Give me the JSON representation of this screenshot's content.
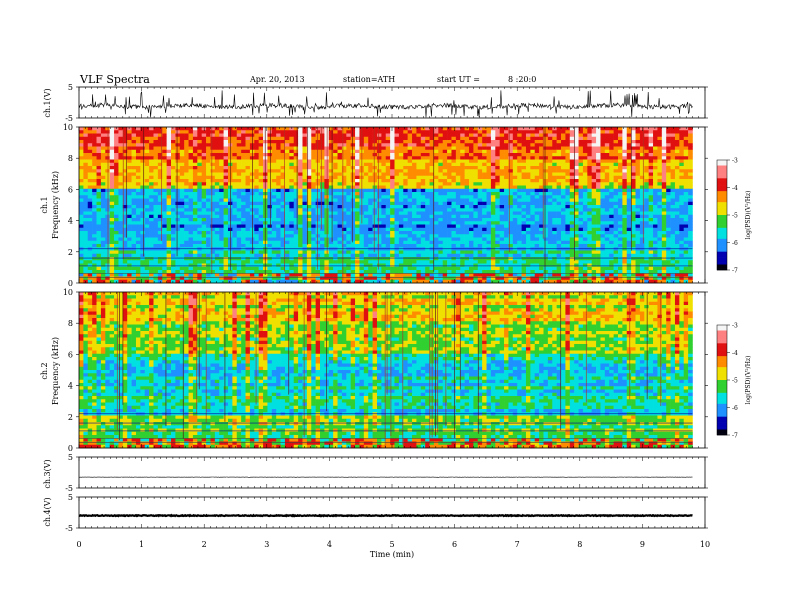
{
  "header": {
    "title": "VLF Spectra",
    "date": "Apr. 20, 2013",
    "station": "station=ATH",
    "start_label": "start UT =",
    "start_time": "8 :20:0"
  },
  "x_axis": {
    "label": "Time (min)",
    "ticks": [
      "0",
      "1",
      "2",
      "3",
      "4",
      "5",
      "6",
      "7",
      "8",
      "9",
      "10"
    ]
  },
  "panels": {
    "ch1_wave": {
      "ylabel": "ch.1(V)",
      "ticks": [
        "5",
        "-5"
      ]
    },
    "ch1_spec": {
      "ylabel": "ch.1",
      "ylabel2": "Frequency (kHz)",
      "ticks": [
        "10",
        "8",
        "6",
        "4",
        "2",
        "0"
      ]
    },
    "ch2_spec": {
      "ylabel": "ch.2",
      "ylabel2": "Frequency (kHz)",
      "ticks": [
        "10",
        "8",
        "6",
        "4",
        "2",
        "0"
      ]
    },
    "ch3_wave": {
      "ylabel": "ch.3(V)",
      "ticks": [
        "5",
        "-5"
      ]
    },
    "ch4_wave": {
      "ylabel": "ch.4(V)",
      "ticks": [
        "5",
        "-5"
      ]
    }
  },
  "colorbar": {
    "label": "log(PSD)(V²/Hz)",
    "ticks": [
      "-3",
      "-4",
      "-5",
      "-6",
      "-7"
    ],
    "colors": [
      "#f5f5f5",
      "#ff8080",
      "#e01010",
      "#ff8c00",
      "#f0e000",
      "#30d030",
      "#00e0e0",
      "#1e90ff",
      "#0000b0",
      "#000010"
    ]
  },
  "chart_data": [
    {
      "type": "line",
      "name": "ch.1(V)",
      "xlabel": "Time (min)",
      "ylabel": "ch.1(V)",
      "xlim": [
        0,
        10
      ],
      "ylim": [
        -5,
        5
      ],
      "data_x_range": [
        0,
        9.8
      ],
      "baseline": -1.2,
      "spike_range": [
        -5,
        4
      ]
    },
    {
      "type": "heatmap",
      "name": "ch.1 Frequency (kHz)",
      "xlabel": "Time (min)",
      "ylabel": "Frequency (kHz)",
      "xlim": [
        0,
        10
      ],
      "ylim": [
        0,
        10
      ],
      "colorbar_range": [
        -7,
        -3
      ],
      "colorbar_label": "log(PSD)(V²/Hz)",
      "typical_logpsd_by_freq": [
        {
          "freq": [
            0,
            2
          ],
          "logpsd": -5.6
        },
        {
          "freq": [
            2,
            4
          ],
          "logpsd": -6.0
        },
        {
          "freq": [
            4,
            6
          ],
          "logpsd": -5.9
        },
        {
          "freq": [
            6,
            8
          ],
          "logpsd": -4.6
        },
        {
          "freq": [
            8,
            10
          ],
          "logpsd": -4.1
        }
      ]
    },
    {
      "type": "heatmap",
      "name": "ch.2 Frequency (kHz)",
      "xlabel": "Time (min)",
      "ylabel": "Frequency (kHz)",
      "xlim": [
        0,
        10
      ],
      "ylim": [
        0,
        10
      ],
      "colorbar_range": [
        -7,
        -3
      ],
      "colorbar_label": "log(PSD)(V²/Hz)",
      "typical_logpsd_by_freq": [
        {
          "freq": [
            0,
            2
          ],
          "logpsd": -5.3
        },
        {
          "freq": [
            2,
            4
          ],
          "logpsd": -5.6
        },
        {
          "freq": [
            4,
            6
          ],
          "logpsd": -5.8
        },
        {
          "freq": [
            6,
            8
          ],
          "logpsd": -5.0
        },
        {
          "freq": [
            8,
            10
          ],
          "logpsd": -4.8
        }
      ]
    },
    {
      "type": "line",
      "name": "ch.3(V)",
      "xlabel": "Time (min)",
      "ylabel": "ch.3(V)",
      "xlim": [
        0,
        10
      ],
      "ylim": [
        -5,
        5
      ],
      "data_x_range": [
        0,
        9.8
      ],
      "baseline": -1.5
    },
    {
      "type": "line",
      "name": "ch.4(V)",
      "xlabel": "Time (min)",
      "ylabel": "ch.4(V)",
      "xlim": [
        0,
        10
      ],
      "ylim": [
        -5,
        5
      ],
      "data_x_range": [
        0,
        9.8
      ],
      "baseline": -1.0
    }
  ]
}
